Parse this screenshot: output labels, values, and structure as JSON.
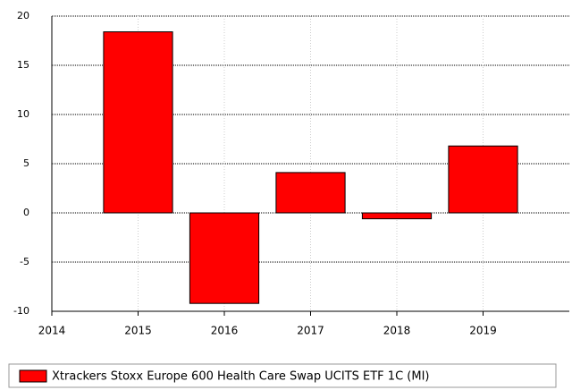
{
  "chart_data": {
    "type": "bar",
    "x": [
      2015,
      2016,
      2017,
      2018,
      2019
    ],
    "series": [
      {
        "name": "Xtrackers Stoxx Europe 600 Health Care Swap UCITS ETF 1C (MI)",
        "color": "#ff0000",
        "values": [
          18.4,
          -9.2,
          4.1,
          -0.6,
          6.8
        ]
      }
    ],
    "xlim": [
      2014,
      2020
    ],
    "xticks": [
      2014,
      2015,
      2016,
      2017,
      2018,
      2019
    ],
    "ylim": [
      -10,
      20
    ],
    "yticks": [
      -10,
      -5,
      0,
      5,
      10,
      15,
      20
    ],
    "grid": true
  }
}
